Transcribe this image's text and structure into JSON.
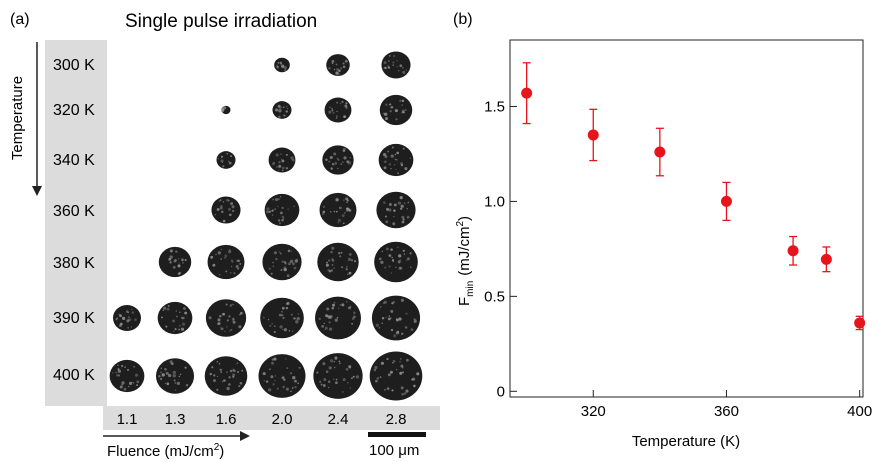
{
  "figure": {
    "panel_a_label": "(a)",
    "panel_b_label": "(b)",
    "panel_a_title": "Single pulse irradiation",
    "temperature_axis_label": "Temperature",
    "fluence_axis_label": "Fluence (mJ/cm",
    "fluence_axis_sup": "2",
    "fluence_axis_close": ")",
    "scale_bar_label": "100 μm",
    "temperatures": [
      "300 K",
      "320 K",
      "340 K",
      "360 K",
      "380 K",
      "390 K",
      "400 K"
    ],
    "fluences": [
      "1.1",
      "1.3",
      "1.6",
      "2.0",
      "2.4",
      "2.8"
    ],
    "colors": {
      "marker": "#e8141c",
      "gray_band": "#dcdcdc",
      "spot": "#1e1e1e"
    }
  },
  "spot_grid": {
    "description_rows": "temperatures",
    "description_cols": "fluences",
    "diameters_um": [
      [
        0,
        0,
        0,
        28,
        42,
        52
      ],
      [
        0,
        0,
        16,
        34,
        48,
        58
      ],
      [
        0,
        0,
        34,
        48,
        56,
        62
      ],
      [
        0,
        0,
        52,
        62,
        66,
        70
      ],
      [
        0,
        58,
        66,
        70,
        74,
        78
      ],
      [
        50,
        62,
        72,
        78,
        82,
        86
      ],
      [
        62,
        68,
        76,
        84,
        88,
        94
      ]
    ]
  },
  "chart_data": {
    "type": "scatter",
    "xlabel": "Temperature (K)",
    "ylabel": "F",
    "ylabel_sub": "min",
    "ylabel_unit": "(mJ/cm",
    "ylabel_sup": "2",
    "ylabel_close": ")",
    "xlim": [
      295,
      401
    ],
    "ylim": [
      -0.03,
      1.85
    ],
    "xticks": [
      320,
      360,
      400
    ],
    "yticks": [
      0,
      0.5,
      1.0,
      1.5
    ],
    "ytick_labels": [
      "0",
      "0.5",
      "1.0",
      "1.5"
    ],
    "grid": false,
    "points": [
      {
        "x": 300,
        "y": 1.57,
        "err": 0.16
      },
      {
        "x": 320,
        "y": 1.35,
        "err": 0.135
      },
      {
        "x": 340,
        "y": 1.26,
        "err": 0.125
      },
      {
        "x": 360,
        "y": 1.0,
        "err": 0.1
      },
      {
        "x": 380,
        "y": 0.74,
        "err": 0.075
      },
      {
        "x": 390,
        "y": 0.695,
        "err": 0.065
      },
      {
        "x": 400,
        "y": 0.36,
        "err": 0.035
      }
    ]
  }
}
